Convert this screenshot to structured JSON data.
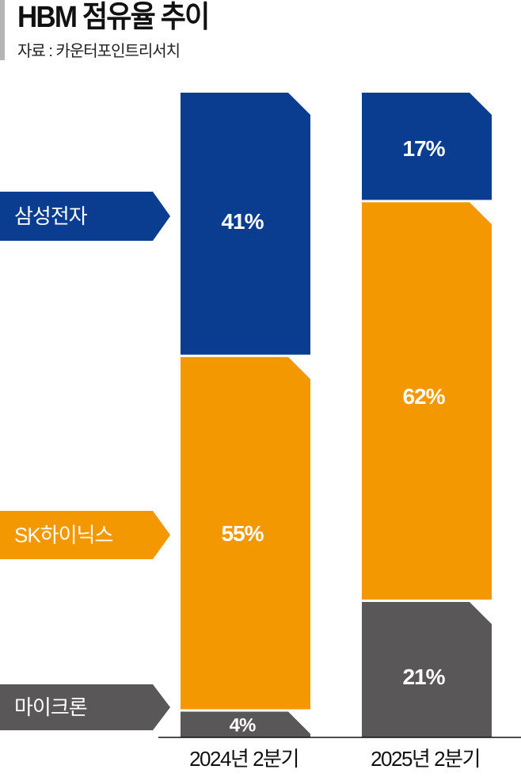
{
  "chart_data": {
    "type": "bar",
    "stacked": true,
    "title": "HBM 점유율 추이",
    "source": "자료 : 카운터포인트리서치",
    "categories": [
      "2024년 2분기",
      "2025년 2분기"
    ],
    "series": [
      {
        "name": "삼성전자",
        "values": [
          41,
          17
        ],
        "color": "#0a3d8f"
      },
      {
        "name": "SK하이닉스",
        "values": [
          55,
          62
        ],
        "color": "#f39800"
      },
      {
        "name": "마이크론",
        "values": [
          4,
          21
        ],
        "color": "#595757"
      }
    ],
    "value_labels": [
      [
        "41%",
        "17%"
      ],
      [
        "55%",
        "62%"
      ],
      [
        "4%",
        "21%"
      ]
    ],
    "ylim": [
      0,
      100
    ],
    "grid": false,
    "legend": "left"
  }
}
